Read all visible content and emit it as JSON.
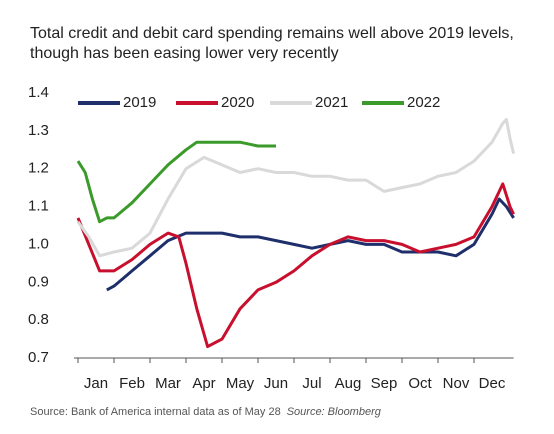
{
  "chart_data": {
    "type": "line",
    "title": [
      "Total credit and debit card spending remains well above 2019 levels,",
      "though has been easing lower very recently"
    ],
    "source": "Source: Bank of America internal data as of May 28",
    "source_credit": "Source: Bloomberg",
    "xlim": [
      0,
      12.1
    ],
    "xticks": [
      {
        "value": 0,
        "label": "Jan"
      },
      {
        "value": 1,
        "label": "Feb"
      },
      {
        "value": 2,
        "label": "Mar"
      },
      {
        "value": 3,
        "label": "Apr"
      },
      {
        "value": 4,
        "label": "May"
      },
      {
        "value": 5,
        "label": "Jun"
      },
      {
        "value": 6,
        "label": "Jul"
      },
      {
        "value": 7,
        "label": "Aug"
      },
      {
        "value": 8,
        "label": "Sep"
      },
      {
        "value": 9,
        "label": "Oct"
      },
      {
        "value": 10,
        "label": "Nov"
      },
      {
        "value": 11,
        "label": "Dec"
      }
    ],
    "ylim": [
      0.7,
      1.4
    ],
    "yticks": [
      1.4,
      1.3,
      1.2,
      1.1,
      {
        "value": 1,
        "label": "1.0"
      },
      0.9,
      0.8,
      0.7
    ],
    "legend": "top",
    "series": [
      {
        "name": "2019",
        "color": "#1f2f6b",
        "x": [
          0.8,
          1,
          1.5,
          2,
          2.5,
          3,
          3.5,
          4,
          4.5,
          5,
          5.5,
          6,
          6.5,
          7,
          7.5,
          8,
          8.5,
          9,
          9.5,
          10,
          10.5,
          11,
          11.5,
          11.7,
          11.9,
          12.1
        ],
        "values": [
          0.88,
          0.89,
          0.93,
          0.97,
          1.01,
          1.03,
          1.03,
          1.03,
          1.02,
          1.02,
          1.01,
          1.0,
          0.99,
          1.0,
          1.01,
          1.0,
          1.0,
          0.98,
          0.98,
          0.98,
          0.97,
          1.0,
          1.08,
          1.12,
          1.1,
          1.07
        ]
      },
      {
        "name": "2020",
        "color": "#c8102e",
        "x": [
          0,
          0.3,
          0.6,
          1,
          1.5,
          2,
          2.5,
          2.8,
          3,
          3.3,
          3.6,
          4,
          4.5,
          5,
          5.5,
          6,
          6.5,
          7,
          7.5,
          8,
          8.5,
          9,
          9.5,
          10,
          10.5,
          11,
          11.5,
          11.8,
          12,
          12.1
        ],
        "values": [
          1.07,
          1.0,
          0.93,
          0.93,
          0.96,
          1.0,
          1.03,
          1.02,
          0.95,
          0.83,
          0.73,
          0.75,
          0.83,
          0.88,
          0.9,
          0.93,
          0.97,
          1.0,
          1.02,
          1.01,
          1.01,
          1.0,
          0.98,
          0.99,
          1.0,
          1.02,
          1.1,
          1.16,
          1.1,
          1.08
        ]
      },
      {
        "name": "2021",
        "color": "#d9d9d9",
        "x": [
          0,
          0.3,
          0.6,
          1,
          1.5,
          2,
          2.5,
          3,
          3.5,
          4,
          4.5,
          5,
          5.5,
          6,
          6.5,
          7,
          7.5,
          8,
          8.5,
          9,
          9.5,
          10,
          10.5,
          11,
          11.5,
          11.8,
          11.9,
          12,
          12.1
        ],
        "values": [
          1.06,
          1.02,
          0.97,
          0.98,
          0.99,
          1.03,
          1.12,
          1.2,
          1.23,
          1.21,
          1.19,
          1.2,
          1.19,
          1.19,
          1.18,
          1.18,
          1.17,
          1.17,
          1.14,
          1.15,
          1.16,
          1.18,
          1.19,
          1.22,
          1.27,
          1.32,
          1.33,
          1.28,
          1.24
        ]
      },
      {
        "name": "2022",
        "color": "#3a9a2a",
        "x": [
          0,
          0.2,
          0.4,
          0.6,
          0.8,
          1,
          1.5,
          2,
          2.5,
          3,
          3.3,
          3.6,
          4,
          4.5,
          5,
          5.5
        ],
        "values": [
          1.22,
          1.19,
          1.12,
          1.06,
          1.07,
          1.07,
          1.11,
          1.16,
          1.21,
          1.25,
          1.27,
          1.27,
          1.27,
          1.27,
          1.26,
          1.26
        ]
      }
    ]
  }
}
